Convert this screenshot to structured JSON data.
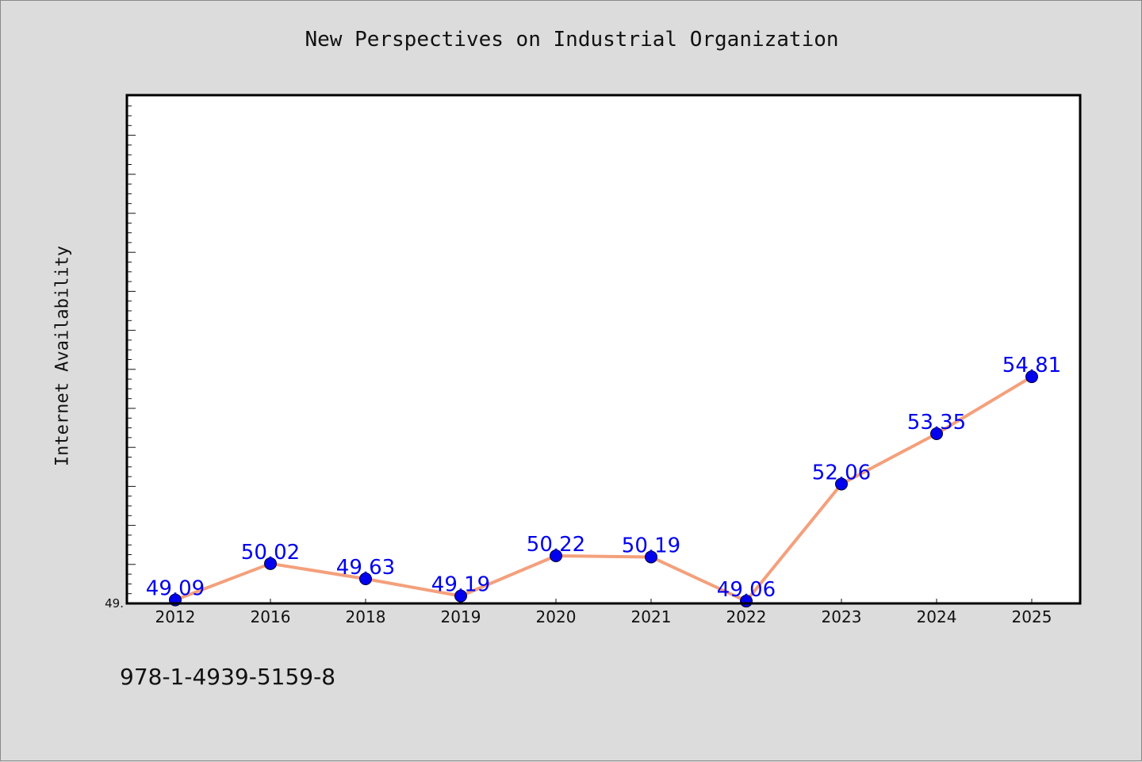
{
  "page": {
    "title": "New Perspectives on Industrial Organization",
    "footer_code": "978-1-4939-5159-8"
  },
  "chart_data": {
    "type": "line",
    "title": "New Perspectives on Industrial Organization",
    "xlabel": "",
    "ylabel": "Internet Availability",
    "categories": [
      "2012",
      "2016",
      "2018",
      "2019",
      "2020",
      "2021",
      "2022",
      "2023",
      "2024",
      "2025"
    ],
    "series": [
      {
        "values": [
          49.09,
          50.02,
          49.63,
          49.19,
          50.22,
          50.19,
          49.06,
          52.06,
          53.35,
          54.81
        ],
        "data_labels": [
          "49.09",
          "50.02",
          "49.63",
          "49.19",
          "50.22",
          "50.19",
          "49.06",
          "52.06",
          "53.35",
          "54.81"
        ],
        "line_color": "#f4a07c",
        "marker_color": "#0000ee"
      }
    ],
    "ylim": [
      49.0,
      55.5
    ],
    "y_tick_label": "49.",
    "grid": false,
    "legend": "none",
    "colors": {
      "line": "#f4a07c",
      "marker": "#0000ee",
      "data_label": "#0000ee",
      "plot_background": "#ffffff",
      "page_background": "#dcdcdc"
    }
  }
}
